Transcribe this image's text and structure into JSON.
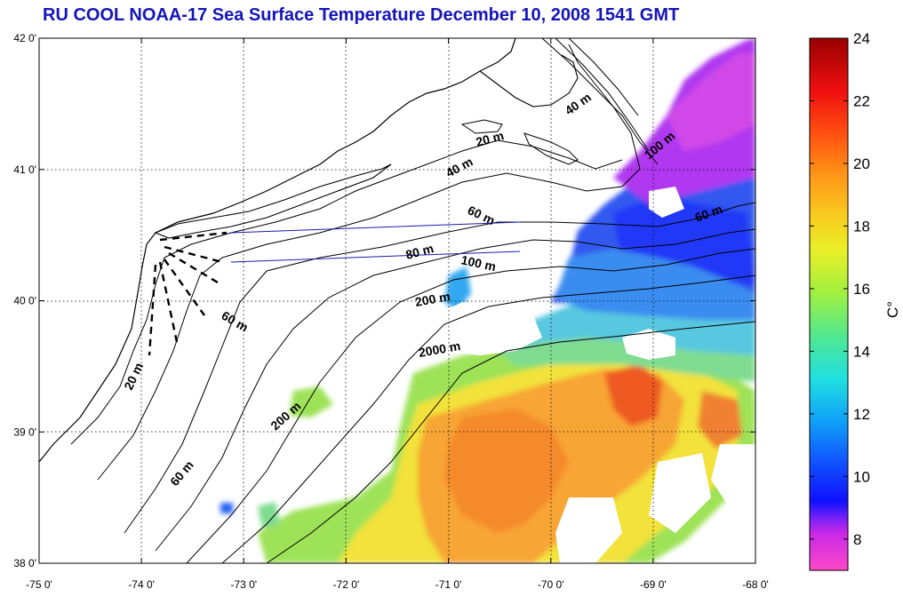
{
  "title": "RU COOL  NOAA-17 Sea Surface Temperature December 10, 2008 1541 GMT",
  "map": {
    "lon_ticks": [
      "-75 0'",
      "-74 0'",
      "-73 0'",
      "-72 0'",
      "-71 0'",
      "-70 0'",
      "-69 0'",
      "-68 0'"
    ],
    "lat_ticks": [
      "42 0'",
      "41 0'",
      "40 0'",
      "39 0'",
      "38 0'"
    ],
    "lon_range": [
      -75,
      -68
    ],
    "lat_range": [
      38,
      42
    ],
    "grid": true,
    "contour_labels": [
      "40 m",
      "20 m",
      "40 m",
      "60 m",
      "80 m",
      "100 m",
      "100 m",
      "60 m",
      "200 m",
      "60 m",
      "2000 m",
      "20 m",
      "200 m",
      "60 m"
    ]
  },
  "colorbar": {
    "ticks": [
      "8",
      "10",
      "12",
      "14",
      "16",
      "18",
      "20",
      "22",
      "24"
    ],
    "unit": "C°",
    "range": [
      7,
      24
    ],
    "colors": [
      "#ff40c8",
      "#c020e0",
      "#1010ff",
      "#1060ff",
      "#10c0f0",
      "#40e8a0",
      "#a0f040",
      "#f0f020",
      "#ffb020",
      "#ff6010",
      "#f01010",
      "#a00000"
    ]
  },
  "sst_colors": {
    "cold_magenta": "#c040f0",
    "cold_blue": "#3050f0",
    "cool_cyan": "#30b0f0",
    "mid_green": "#90e060",
    "warm_yellow": "#f0e040",
    "warm_orange": "#f8a030",
    "hot_red": "#f06020"
  }
}
